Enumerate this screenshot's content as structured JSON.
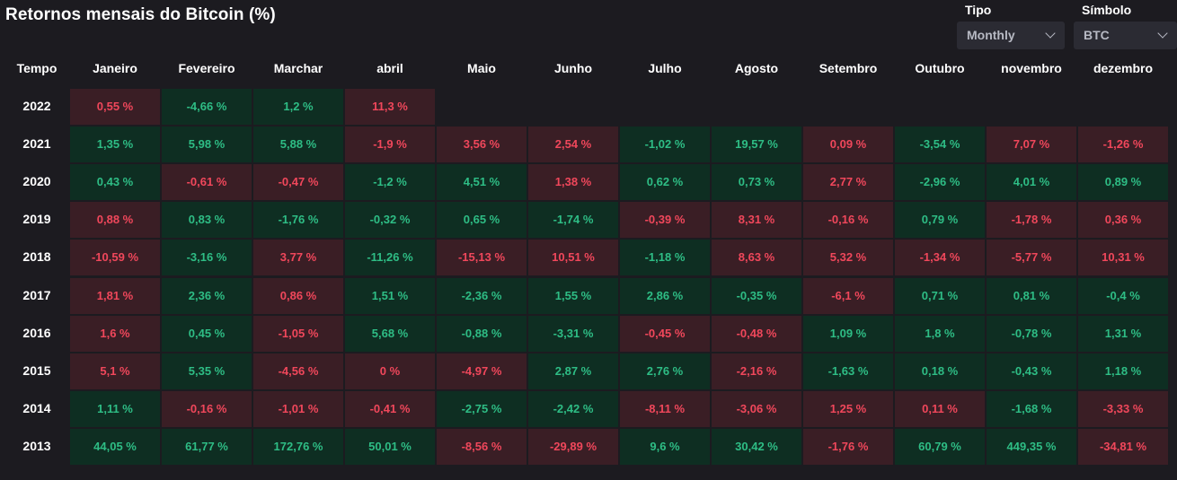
{
  "title": "Retornos mensais do Bitcoin (%)",
  "filters": {
    "type": {
      "label": "Tipo",
      "value": "Monthly"
    },
    "symbol": {
      "label": "Símbolo",
      "value": "BTC"
    }
  },
  "colors": {
    "background": "#1c1b20",
    "positive_bg": "#0e2e22",
    "positive_text": "#2ebd85",
    "negative_bg": "#3a1e25",
    "negative_text": "#f0475b"
  },
  "table": {
    "corner_header": "Tempo",
    "months": [
      "Janeiro",
      "Fevereiro",
      "Marchar",
      "abril",
      "Maio",
      "Junho",
      "Julho",
      "Agosto",
      "Setembro",
      "Outubro",
      "novembro",
      "dezembro"
    ],
    "rows": [
      {
        "year": "2022",
        "cells": [
          {
            "text": "0,55 %",
            "sign": "neg"
          },
          {
            "text": "-4,66 %",
            "sign": "pos"
          },
          {
            "text": "1,2 %",
            "sign": "pos"
          },
          {
            "text": "11,3 %",
            "sign": "neg"
          }
        ]
      },
      {
        "year": "2021",
        "cells": [
          {
            "text": "1,35 %",
            "sign": "pos"
          },
          {
            "text": "5,98 %",
            "sign": "pos"
          },
          {
            "text": "5,88 %",
            "sign": "pos"
          },
          {
            "text": "-1,9 %",
            "sign": "neg"
          },
          {
            "text": "3,56 %",
            "sign": "neg"
          },
          {
            "text": "2,54 %",
            "sign": "neg"
          },
          {
            "text": "-1,02 %",
            "sign": "pos"
          },
          {
            "text": "19,57 %",
            "sign": "pos"
          },
          {
            "text": "0,09 %",
            "sign": "neg"
          },
          {
            "text": "-3,54 %",
            "sign": "pos"
          },
          {
            "text": "7,07 %",
            "sign": "neg"
          },
          {
            "text": "-1,26 %",
            "sign": "neg"
          }
        ]
      },
      {
        "year": "2020",
        "cells": [
          {
            "text": "0,43 %",
            "sign": "pos"
          },
          {
            "text": "-0,61 %",
            "sign": "neg"
          },
          {
            "text": "-0,47 %",
            "sign": "neg"
          },
          {
            "text": "-1,2 %",
            "sign": "pos"
          },
          {
            "text": "4,51 %",
            "sign": "pos"
          },
          {
            "text": "1,38 %",
            "sign": "neg"
          },
          {
            "text": "0,62 %",
            "sign": "pos"
          },
          {
            "text": "0,73 %",
            "sign": "pos"
          },
          {
            "text": "2,77 %",
            "sign": "neg"
          },
          {
            "text": "-2,96 %",
            "sign": "pos"
          },
          {
            "text": "4,01 %",
            "sign": "pos"
          },
          {
            "text": "0,89 %",
            "sign": "pos"
          }
        ]
      },
      {
        "year": "2019",
        "cells": [
          {
            "text": "0,88 %",
            "sign": "neg"
          },
          {
            "text": "0,83 %",
            "sign": "pos"
          },
          {
            "text": "-1,76 %",
            "sign": "pos"
          },
          {
            "text": "-0,32 %",
            "sign": "pos"
          },
          {
            "text": "0,65 %",
            "sign": "pos"
          },
          {
            "text": "-1,74 %",
            "sign": "pos"
          },
          {
            "text": "-0,39 %",
            "sign": "neg"
          },
          {
            "text": "8,31 %",
            "sign": "neg"
          },
          {
            "text": "-0,16 %",
            "sign": "neg"
          },
          {
            "text": "0,79 %",
            "sign": "pos"
          },
          {
            "text": "-1,78 %",
            "sign": "neg"
          },
          {
            "text": "0,36 %",
            "sign": "neg"
          }
        ]
      },
      {
        "year": "2018",
        "cells": [
          {
            "text": "-10,59 %",
            "sign": "neg"
          },
          {
            "text": "-3,16 %",
            "sign": "pos"
          },
          {
            "text": "3,77 %",
            "sign": "neg"
          },
          {
            "text": "-11,26 %",
            "sign": "pos"
          },
          {
            "text": "-15,13 %",
            "sign": "neg"
          },
          {
            "text": "10,51 %",
            "sign": "neg"
          },
          {
            "text": "-1,18 %",
            "sign": "pos"
          },
          {
            "text": "8,63 %",
            "sign": "neg"
          },
          {
            "text": "5,32 %",
            "sign": "neg"
          },
          {
            "text": "-1,34 %",
            "sign": "neg"
          },
          {
            "text": "-5,77 %",
            "sign": "neg"
          },
          {
            "text": "10,31 %",
            "sign": "neg"
          }
        ]
      },
      {
        "year": "2017",
        "cells": [
          {
            "text": "1,81 %",
            "sign": "neg"
          },
          {
            "text": "2,36 %",
            "sign": "pos"
          },
          {
            "text": "0,86 %",
            "sign": "neg"
          },
          {
            "text": "1,51 %",
            "sign": "pos"
          },
          {
            "text": "-2,36 %",
            "sign": "pos"
          },
          {
            "text": "1,55 %",
            "sign": "pos"
          },
          {
            "text": "2,86 %",
            "sign": "pos"
          },
          {
            "text": "-0,35 %",
            "sign": "pos"
          },
          {
            "text": "-6,1 %",
            "sign": "neg"
          },
          {
            "text": "0,71 %",
            "sign": "pos"
          },
          {
            "text": "0,81 %",
            "sign": "pos"
          },
          {
            "text": "-0,4 %",
            "sign": "pos"
          }
        ]
      },
      {
        "year": "2016",
        "cells": [
          {
            "text": "1,6 %",
            "sign": "neg"
          },
          {
            "text": "0,45 %",
            "sign": "pos"
          },
          {
            "text": "-1,05 %",
            "sign": "neg"
          },
          {
            "text": "5,68 %",
            "sign": "pos"
          },
          {
            "text": "-0,88 %",
            "sign": "pos"
          },
          {
            "text": "-3,31 %",
            "sign": "pos"
          },
          {
            "text": "-0,45 %",
            "sign": "neg"
          },
          {
            "text": "-0,48 %",
            "sign": "neg"
          },
          {
            "text": "1,09 %",
            "sign": "pos"
          },
          {
            "text": "1,8 %",
            "sign": "pos"
          },
          {
            "text": "-0,78 %",
            "sign": "pos"
          },
          {
            "text": "1,31 %",
            "sign": "pos"
          }
        ]
      },
      {
        "year": "2015",
        "cells": [
          {
            "text": "5,1 %",
            "sign": "neg"
          },
          {
            "text": "5,35 %",
            "sign": "pos"
          },
          {
            "text": "-4,56 %",
            "sign": "neg"
          },
          {
            "text": "0 %",
            "sign": "neg"
          },
          {
            "text": "-4,97 %",
            "sign": "neg"
          },
          {
            "text": "2,87 %",
            "sign": "pos"
          },
          {
            "text": "2,76 %",
            "sign": "pos"
          },
          {
            "text": "-2,16 %",
            "sign": "neg"
          },
          {
            "text": "-1,63 %",
            "sign": "pos"
          },
          {
            "text": "0,18 %",
            "sign": "pos"
          },
          {
            "text": "-0,43 %",
            "sign": "pos"
          },
          {
            "text": "1,18 %",
            "sign": "pos"
          }
        ]
      },
      {
        "year": "2014",
        "cells": [
          {
            "text": "1,11 %",
            "sign": "pos"
          },
          {
            "text": "-0,16 %",
            "sign": "neg"
          },
          {
            "text": "-1,01 %",
            "sign": "neg"
          },
          {
            "text": "-0,41 %",
            "sign": "neg"
          },
          {
            "text": "-2,75 %",
            "sign": "pos"
          },
          {
            "text": "-2,42 %",
            "sign": "pos"
          },
          {
            "text": "-8,11 %",
            "sign": "neg"
          },
          {
            "text": "-3,06 %",
            "sign": "neg"
          },
          {
            "text": "1,25 %",
            "sign": "neg"
          },
          {
            "text": "0,11 %",
            "sign": "neg"
          },
          {
            "text": "-1,68 %",
            "sign": "pos"
          },
          {
            "text": "-3,33 %",
            "sign": "neg"
          }
        ]
      },
      {
        "year": "2013",
        "cells": [
          {
            "text": "44,05 %",
            "sign": "pos"
          },
          {
            "text": "61,77 %",
            "sign": "pos"
          },
          {
            "text": "172,76 %",
            "sign": "pos"
          },
          {
            "text": "50,01 %",
            "sign": "pos"
          },
          {
            "text": "-8,56 %",
            "sign": "neg"
          },
          {
            "text": "-29,89 %",
            "sign": "neg"
          },
          {
            "text": "9,6 %",
            "sign": "pos"
          },
          {
            "text": "30,42 %",
            "sign": "pos"
          },
          {
            "text": "-1,76 %",
            "sign": "neg"
          },
          {
            "text": "60,79 %",
            "sign": "pos"
          },
          {
            "text": "449,35 %",
            "sign": "pos"
          },
          {
            "text": "-34,81 %",
            "sign": "neg"
          }
        ]
      }
    ]
  }
}
